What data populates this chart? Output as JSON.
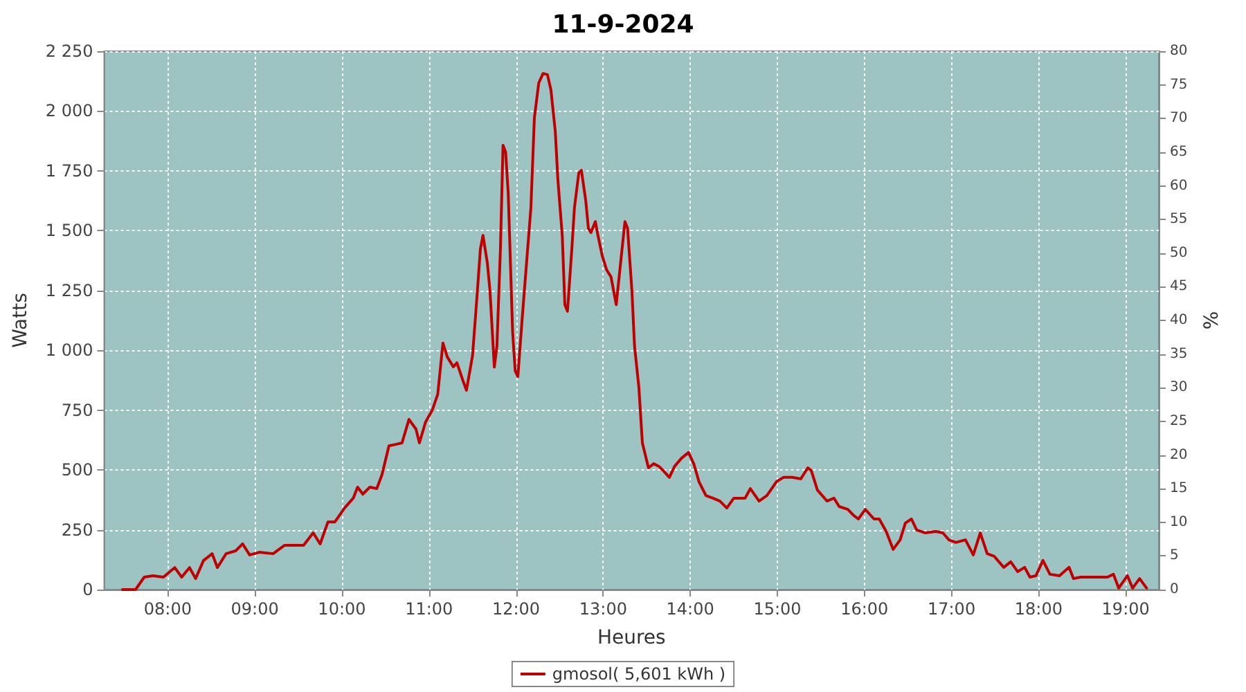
{
  "chart_data": {
    "type": "line",
    "title": "11-9-2024",
    "xlabel": "Heures",
    "ylabel": "Watts",
    "y2label": "%",
    "xlim": [
      7.27,
      19.38
    ],
    "xticks": [
      {
        "value": 8,
        "label": "08:00"
      },
      {
        "value": 9,
        "label": "09:00"
      },
      {
        "value": 10,
        "label": "10:00"
      },
      {
        "value": 11,
        "label": "11:00"
      },
      {
        "value": 12,
        "label": "12:00"
      },
      {
        "value": 13,
        "label": "13:00"
      },
      {
        "value": 14,
        "label": "14:00"
      },
      {
        "value": 15,
        "label": "15:00"
      },
      {
        "value": 16,
        "label": "16:00"
      },
      {
        "value": 17,
        "label": "17:00"
      },
      {
        "value": 18,
        "label": "18:00"
      },
      {
        "value": 19,
        "label": "19:00"
      }
    ],
    "ylim": [
      0,
      2250
    ],
    "yticks": [
      0,
      250,
      500,
      750,
      {
        "value": 1000,
        "label": "1 000"
      },
      {
        "value": 1250,
        "label": "1 250"
      },
      {
        "value": 1500,
        "label": "1 500"
      },
      {
        "value": 1750,
        "label": "1 750"
      },
      {
        "value": 2000,
        "label": "2 000"
      },
      {
        "value": 2250,
        "label": "2 250"
      }
    ],
    "y2lim": [
      0,
      80
    ],
    "y2ticks": [
      0,
      5,
      10,
      15,
      20,
      25,
      30,
      35,
      40,
      45,
      50,
      55,
      60,
      65,
      70,
      75,
      80
    ],
    "grid": true,
    "legend": "bottom",
    "series": [
      {
        "name": "gmosol( 5,601 kWh )",
        "color": "#c00000",
        "x": [
          7.48,
          7.63,
          7.73,
          7.83,
          7.95,
          8.08,
          8.16,
          8.25,
          8.32,
          8.41,
          8.51,
          8.57,
          8.67,
          8.78,
          8.86,
          8.94,
          9.05,
          9.21,
          9.34,
          9.46,
          9.56,
          9.67,
          9.75,
          9.84,
          9.92,
          10.03,
          10.13,
          10.18,
          10.24,
          10.32,
          10.4,
          10.46,
          10.54,
          10.62,
          10.69,
          10.77,
          10.85,
          10.89,
          10.96,
          11.04,
          11.1,
          11.16,
          11.21,
          11.28,
          11.32,
          11.39,
          11.43,
          11.5,
          11.55,
          11.59,
          11.62,
          11.67,
          11.7,
          11.75,
          11.78,
          11.82,
          11.85,
          11.88,
          11.91,
          11.94,
          11.96,
          11.99,
          12.02,
          12.07,
          12.12,
          12.17,
          12.21,
          12.26,
          12.31,
          12.36,
          12.4,
          12.45,
          12.48,
          12.53,
          12.56,
          12.59,
          12.64,
          12.67,
          12.72,
          12.75,
          12.8,
          12.83,
          12.86,
          12.91,
          12.94,
          12.99,
          13.04,
          13.09,
          13.15,
          13.2,
          13.25,
          13.28,
          13.33,
          13.36,
          13.41,
          13.45,
          13.52,
          13.58,
          13.64,
          13.69,
          13.76,
          13.82,
          13.9,
          13.98,
          14.04,
          14.1,
          14.18,
          14.26,
          14.34,
          14.42,
          14.5,
          14.63,
          14.69,
          14.79,
          14.88,
          14.99,
          15.07,
          15.17,
          15.27,
          15.35,
          15.39,
          15.46,
          15.57,
          15.65,
          15.71,
          15.81,
          15.87,
          15.93,
          16.01,
          16.11,
          16.17,
          16.25,
          16.33,
          16.41,
          16.47,
          16.54,
          16.6,
          16.7,
          16.82,
          16.9,
          16.97,
          17.05,
          17.16,
          17.25,
          17.33,
          17.41,
          17.49,
          17.6,
          17.68,
          17.76,
          17.84,
          17.9,
          17.97,
          18.05,
          18.13,
          18.24,
          18.35,
          18.4,
          18.48,
          18.59,
          18.79,
          18.86,
          18.92,
          19.02,
          19.08,
          19.16,
          19.24
        ],
        "values": [
          0,
          0,
          52,
          58,
          52,
          92,
          52,
          92,
          46,
          121,
          150,
          92,
          150,
          162,
          191,
          145,
          156,
          150,
          185,
          185,
          185,
          237,
          191,
          283,
          283,
          341,
          382,
          428,
          399,
          428,
          422,
          480,
          601,
          607,
          613,
          711,
          671,
          613,
          700,
          752,
          816,
          1030,
          972,
          931,
          948,
          873,
          833,
          978,
          1220,
          1423,
          1480,
          1365,
          1249,
          930,
          1018,
          1423,
          1857,
          1828,
          1654,
          1307,
          1076,
          914,
          890,
          1133,
          1365,
          1596,
          1972,
          2117,
          2157,
          2152,
          2088,
          1915,
          1712,
          1480,
          1191,
          1163,
          1423,
          1596,
          1741,
          1752,
          1625,
          1510,
          1492,
          1538,
          1480,
          1394,
          1336,
          1307,
          1191,
          1365,
          1538,
          1510,
          1249,
          1018,
          845,
          613,
          509,
          526,
          515,
          497,
          469,
          515,
          549,
          573,
          526,
          451,
          393,
          382,
          370,
          341,
          382,
          382,
          422,
          370,
          393,
          451,
          469,
          469,
          463,
          509,
          497,
          416,
          370,
          382,
          347,
          335,
          312,
          295,
          335,
          295,
          295,
          243,
          168,
          208,
          278,
          295,
          249,
          237,
          243,
          237,
          208,
          197,
          208,
          145,
          237,
          150,
          139,
          93,
          116,
          75,
          93,
          52,
          58,
          122,
          64,
          58,
          93,
          46,
          52,
          52,
          52,
          64,
          6,
          58,
          6,
          46,
          6
        ]
      }
    ]
  }
}
